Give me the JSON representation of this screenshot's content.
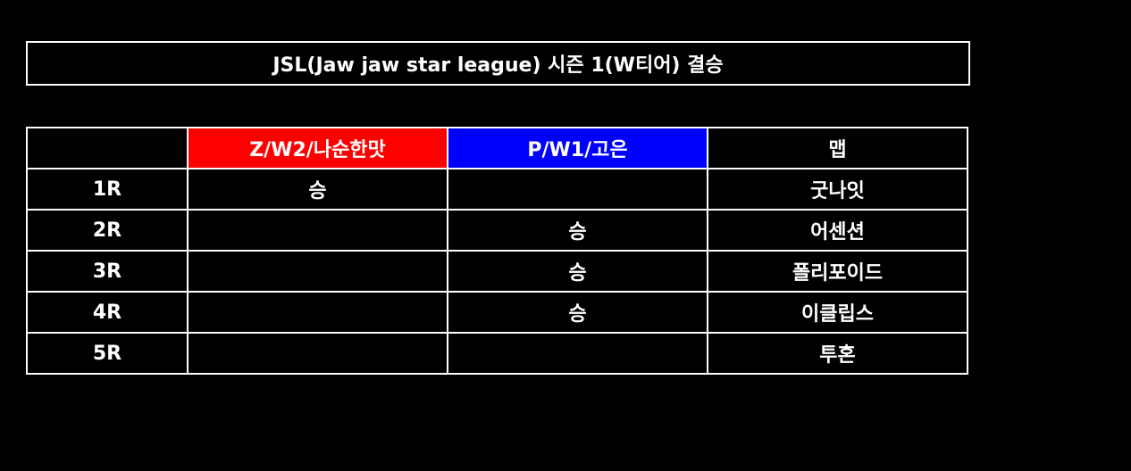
{
  "title": "JSL(Jaw jaw star league) 시즌 1(W티어) 결승",
  "header": {
    "round": "",
    "player1": "Z/W2/나순한맛",
    "player2": "P/W1/고은",
    "map": "맵"
  },
  "colors": {
    "player1": "#ff0000",
    "player2": "#0000ff",
    "background": "#000000",
    "border": "#ffffff"
  },
  "rows": [
    {
      "round": "1R",
      "player1": "승",
      "player2": "",
      "map": "굿나잇"
    },
    {
      "round": "2R",
      "player1": "",
      "player2": "승",
      "map": "어센션"
    },
    {
      "round": "3R",
      "player1": "",
      "player2": "승",
      "map": "폴리포이드"
    },
    {
      "round": "4R",
      "player1": "",
      "player2": "승",
      "map": "이클립스"
    },
    {
      "round": "5R",
      "player1": "",
      "player2": "",
      "map": "투혼"
    }
  ]
}
